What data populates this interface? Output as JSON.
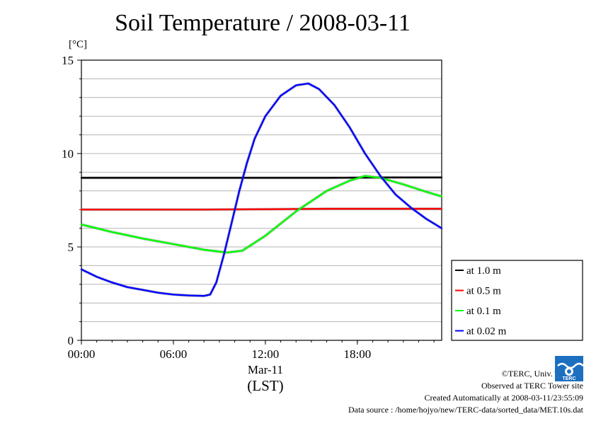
{
  "chart_data": {
    "type": "line",
    "title": "Soil Temperature / 2008-03-11",
    "ylabel_unit": "[°C]",
    "xlabel_date": "Mar-11",
    "xlabel_tz": "(LST)",
    "xlim_hours": [
      0,
      23.5
    ],
    "ylim": [
      0,
      15
    ],
    "yticks": [
      "0",
      "5",
      "10",
      "15"
    ],
    "xticks": [
      {
        "hour": 0,
        "label": "00:00"
      },
      {
        "hour": 6,
        "label": "06:00"
      },
      {
        "hour": 12,
        "label": "12:00"
      },
      {
        "hour": 18,
        "label": "18:00"
      }
    ],
    "grid": true,
    "legend_position": "right",
    "series": [
      {
        "name": "at 1.0 m",
        "color": "#000000",
        "x": [
          0,
          4,
          8,
          12,
          16,
          20,
          23.5
        ],
        "y": [
          8.7,
          8.7,
          8.7,
          8.7,
          8.7,
          8.72,
          8.72
        ]
      },
      {
        "name": "at 0.5 m",
        "color": "#ff0000",
        "x": [
          0,
          4,
          8,
          12,
          16,
          20,
          23.5
        ],
        "y": [
          7.0,
          7.0,
          7.0,
          7.02,
          7.04,
          7.04,
          7.04
        ]
      },
      {
        "name": "at 0.1 m",
        "color": "#00ff00",
        "x": [
          0,
          2,
          4,
          6,
          8,
          9.5,
          10.5,
          12,
          14,
          16,
          17.5,
          18.5,
          19.5,
          21,
          22.5,
          23.5
        ],
        "y": [
          6.2,
          5.8,
          5.45,
          5.15,
          4.85,
          4.7,
          4.8,
          5.6,
          6.9,
          8.0,
          8.55,
          8.8,
          8.7,
          8.35,
          7.95,
          7.7
        ]
      },
      {
        "name": "at 0.02 m",
        "color": "#0000ff",
        "x": [
          0,
          1,
          2,
          3,
          4,
          5,
          6,
          7,
          8,
          8.4,
          8.8,
          9.3,
          9.8,
          10.3,
          10.8,
          11.3,
          12,
          13,
          14,
          14.8,
          15.5,
          16.5,
          17.5,
          18.5,
          19.5,
          20.5,
          21.5,
          22.5,
          23.5
        ],
        "y": [
          3.8,
          3.4,
          3.1,
          2.85,
          2.7,
          2.55,
          2.45,
          2.4,
          2.38,
          2.45,
          3.1,
          4.6,
          6.3,
          8.0,
          9.5,
          10.8,
          12.0,
          13.1,
          13.65,
          13.75,
          13.45,
          12.6,
          11.4,
          10.0,
          8.8,
          7.8,
          7.1,
          6.5,
          6.0
        ]
      }
    ]
  },
  "footer": {
    "copyright": "©TERC, Univ. Tsukuba",
    "observed": "Observed at TERC Tower site",
    "created": "Created Automatically at 2008-03-11/23:55:09",
    "source": "Data source : /home/hojyo/new/TERC-data/sorted_data/MET.10s.dat",
    "logo_text": "TERC"
  }
}
